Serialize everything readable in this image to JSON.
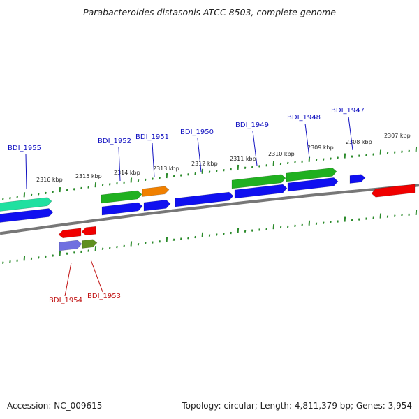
{
  "title": "Parabacteroides distasonis ATCC 8503, complete genome",
  "footer": {
    "accession": "Accession: NC_009615",
    "topology": "Topology: circular; Length: 4,811,379 bp; Genes: 3,954"
  },
  "colors": {
    "backbone": "#777777",
    "tick": "#2a8a2a",
    "label_forward": "#1010c0",
    "label_reverse": "#c01010",
    "blue": "#1010f0",
    "green": "#20b020",
    "teal": "#20e0a0",
    "orange": "#f08000",
    "red": "#f00000",
    "purple": "#7070e0",
    "olive": "#609020"
  },
  "tick_labels": [
    "2316 kbp",
    "2315 kbp",
    "2314 kbp",
    "2313 kbp",
    "2312 kbp",
    "2311 kbp",
    "2310 kbp",
    "2309 kbp",
    "2308 kbp",
    "2307 kbp"
  ],
  "gene_labels": {
    "forward": [
      "BDI_1955",
      "BDI_1952",
      "BDI_1951",
      "BDI_1950",
      "BDI_1949",
      "BDI_1948",
      "BDI_1947"
    ],
    "reverse": [
      "BDI_1954",
      "BDI_1953"
    ]
  }
}
